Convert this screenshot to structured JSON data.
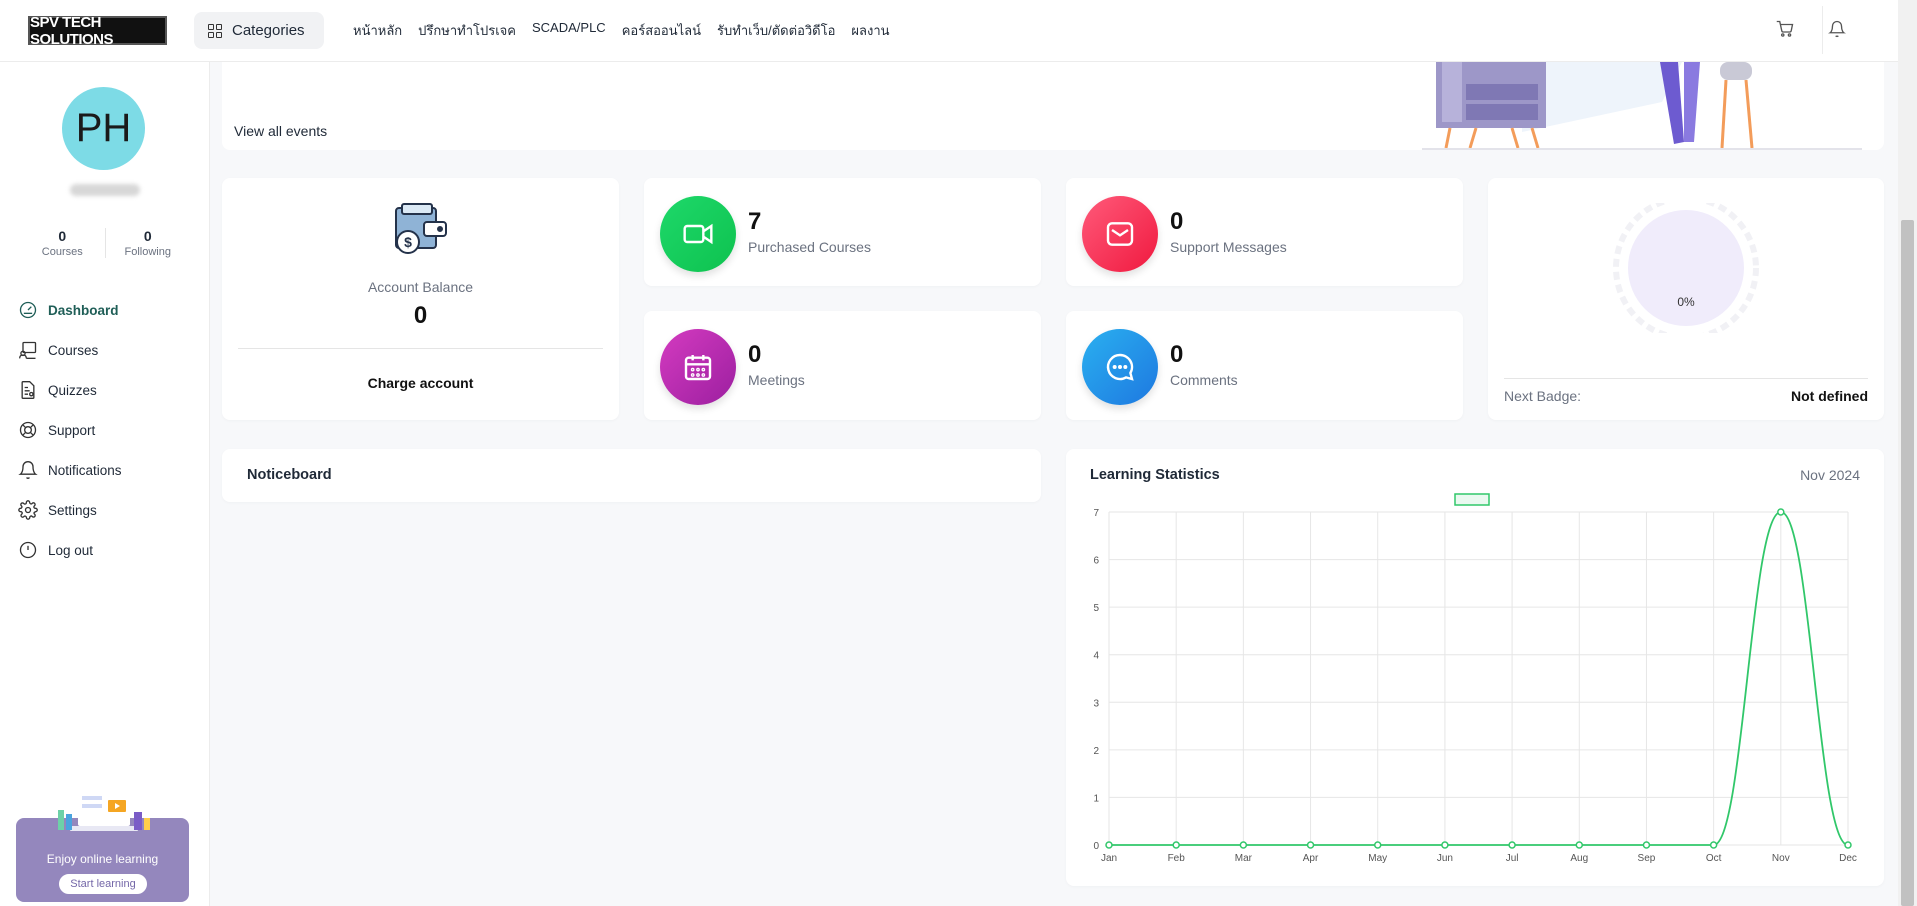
{
  "header": {
    "logo_text": "SPV TECH SOLUTIONS",
    "categories_label": "Categories",
    "nav": [
      "หน้าหลัก",
      "ปรึกษาทำโปรเจค",
      "SCADA/PLC",
      "คอร์สออนไลน์",
      "รับทำเว็บ/ตัดต่อวิดีโอ",
      "ผลงาน"
    ],
    "icons": [
      "cart-icon",
      "bell-icon"
    ]
  },
  "sidebar": {
    "avatar_initials": "PH",
    "stats": [
      {
        "value": "0",
        "label": "Courses"
      },
      {
        "value": "0",
        "label": "Following"
      }
    ],
    "menu": [
      {
        "label": "Dashboard",
        "icon": "dashboard-icon",
        "active": true
      },
      {
        "label": "Courses",
        "icon": "courses-icon"
      },
      {
        "label": "Quizzes",
        "icon": "quizzes-icon"
      },
      {
        "label": "Support",
        "icon": "support-icon"
      },
      {
        "label": "Notifications",
        "icon": "bell-icon"
      },
      {
        "label": "Settings",
        "icon": "gear-icon"
      },
      {
        "label": "Log out",
        "icon": "logout-icon"
      }
    ],
    "promo": {
      "text": "Enjoy online learning",
      "button": "Start learning"
    }
  },
  "banner": {
    "view_all": "View all events"
  },
  "balance": {
    "title": "Account Balance",
    "value": "0",
    "button": "Charge account"
  },
  "stat_cards": {
    "purchased": {
      "value": "7",
      "label": "Purchased Courses",
      "color": "#14c95c"
    },
    "support": {
      "value": "0",
      "label": "Support Messages",
      "color": "#f5365c"
    },
    "meetings": {
      "value": "0",
      "label": "Meetings",
      "color": "#c02bb6"
    },
    "comments": {
      "value": "0",
      "label": "Comments",
      "color": "#2a8ff0"
    }
  },
  "badge": {
    "percent": "0%",
    "next_label": "Next Badge:",
    "next_value": "Not defined"
  },
  "noticeboard": {
    "title": "Noticeboard"
  },
  "learning": {
    "title": "Learning Statistics",
    "date": "Nov 2024"
  },
  "chart_data": {
    "type": "line",
    "categories": [
      "Jan",
      "Feb",
      "Mar",
      "Apr",
      "May",
      "Jun",
      "Jul",
      "Aug",
      "Sep",
      "Oct",
      "Nov",
      "Dec"
    ],
    "series": [
      {
        "values": [
          0,
          0,
          0,
          0,
          0,
          0,
          0,
          0,
          0,
          0,
          7,
          0
        ],
        "color": "#31c76a"
      }
    ],
    "ylim": [
      0,
      7
    ],
    "yticks": [
      0,
      1,
      2,
      3,
      4,
      5,
      6,
      7
    ],
    "grid": true,
    "legend": "top"
  }
}
